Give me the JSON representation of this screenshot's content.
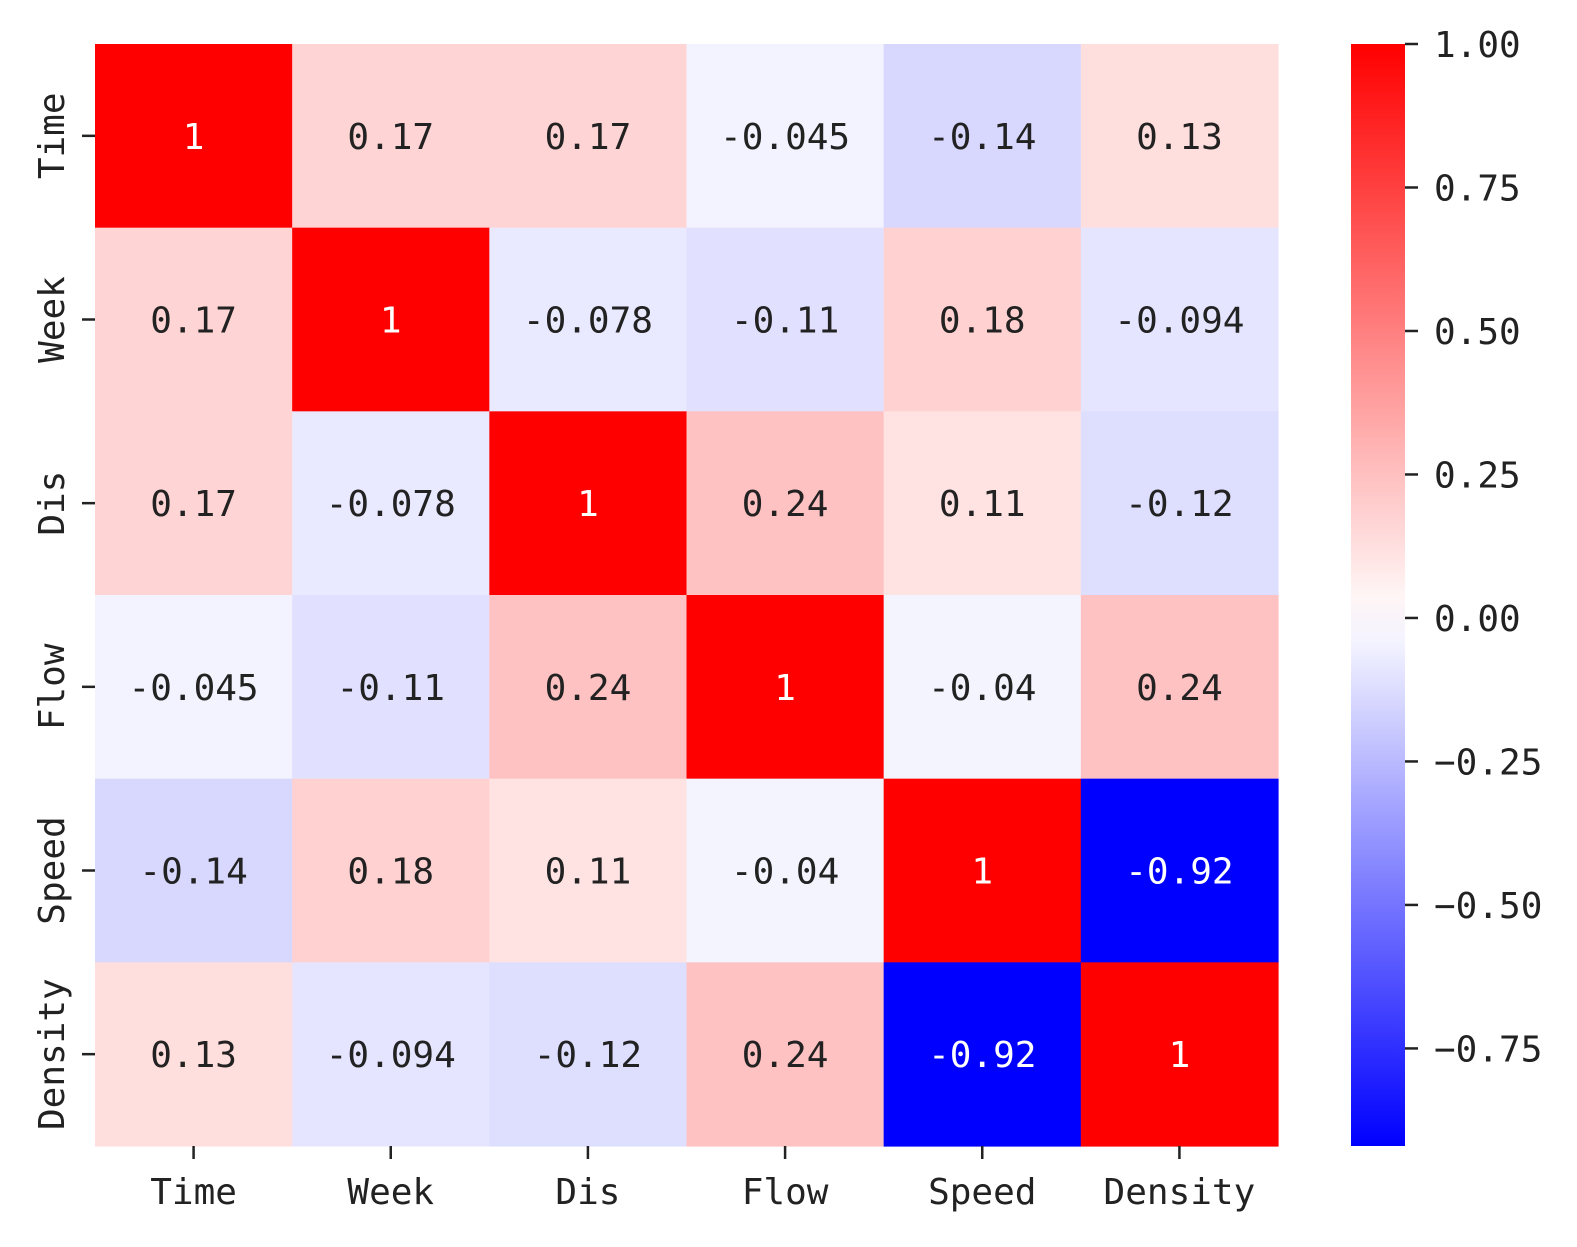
{
  "chart_data": {
    "type": "heatmap",
    "title": "",
    "xlabel": "",
    "ylabel": "",
    "row_labels": [
      "Time",
      "Week",
      "Dis",
      "Flow",
      "Speed",
      "Density"
    ],
    "col_labels": [
      "Time",
      "Week",
      "Dis",
      "Flow",
      "Speed",
      "Density"
    ],
    "values": [
      [
        1,
        0.17,
        0.17,
        -0.045,
        -0.14,
        0.13
      ],
      [
        0.17,
        1,
        -0.078,
        -0.11,
        0.18,
        -0.094
      ],
      [
        0.17,
        -0.078,
        1,
        0.24,
        0.11,
        -0.12
      ],
      [
        -0.045,
        -0.11,
        0.24,
        1,
        -0.04,
        0.24
      ],
      [
        -0.14,
        0.18,
        0.11,
        -0.04,
        1,
        -0.92
      ],
      [
        0.13,
        -0.094,
        -0.12,
        0.24,
        -0.92,
        1
      ]
    ],
    "annotations": [
      [
        "1",
        "0.17",
        "0.17",
        "-0.045",
        "-0.14",
        "0.13"
      ],
      [
        "0.17",
        "1",
        "-0.078",
        "-0.11",
        "0.18",
        "-0.094"
      ],
      [
        "0.17",
        "-0.078",
        "1",
        "0.24",
        "0.11",
        "-0.12"
      ],
      [
        "-0.045",
        "-0.11",
        "0.24",
        "1",
        "-0.04",
        "0.24"
      ],
      [
        "-0.14",
        "0.18",
        "0.11",
        "-0.04",
        "1",
        "-0.92"
      ],
      [
        "0.13",
        "-0.094",
        "-0.12",
        "0.24",
        "-0.92",
        "1"
      ]
    ],
    "colormap": "bwr",
    "colormap_colors": {
      "low": "#0000ff",
      "mid": "#ffffff",
      "high": "#ff0000"
    },
    "vmin": -0.92,
    "vmax": 1.0,
    "colorbar": {
      "ticks": [
        1.0,
        0.75,
        0.5,
        0.25,
        0.0,
        -0.25,
        -0.5,
        -0.75
      ],
      "tick_labels": [
        "1.00",
        "0.75",
        "0.50",
        "0.25",
        "0.00",
        "−0.25",
        "−0.50",
        "−0.75"
      ]
    }
  }
}
